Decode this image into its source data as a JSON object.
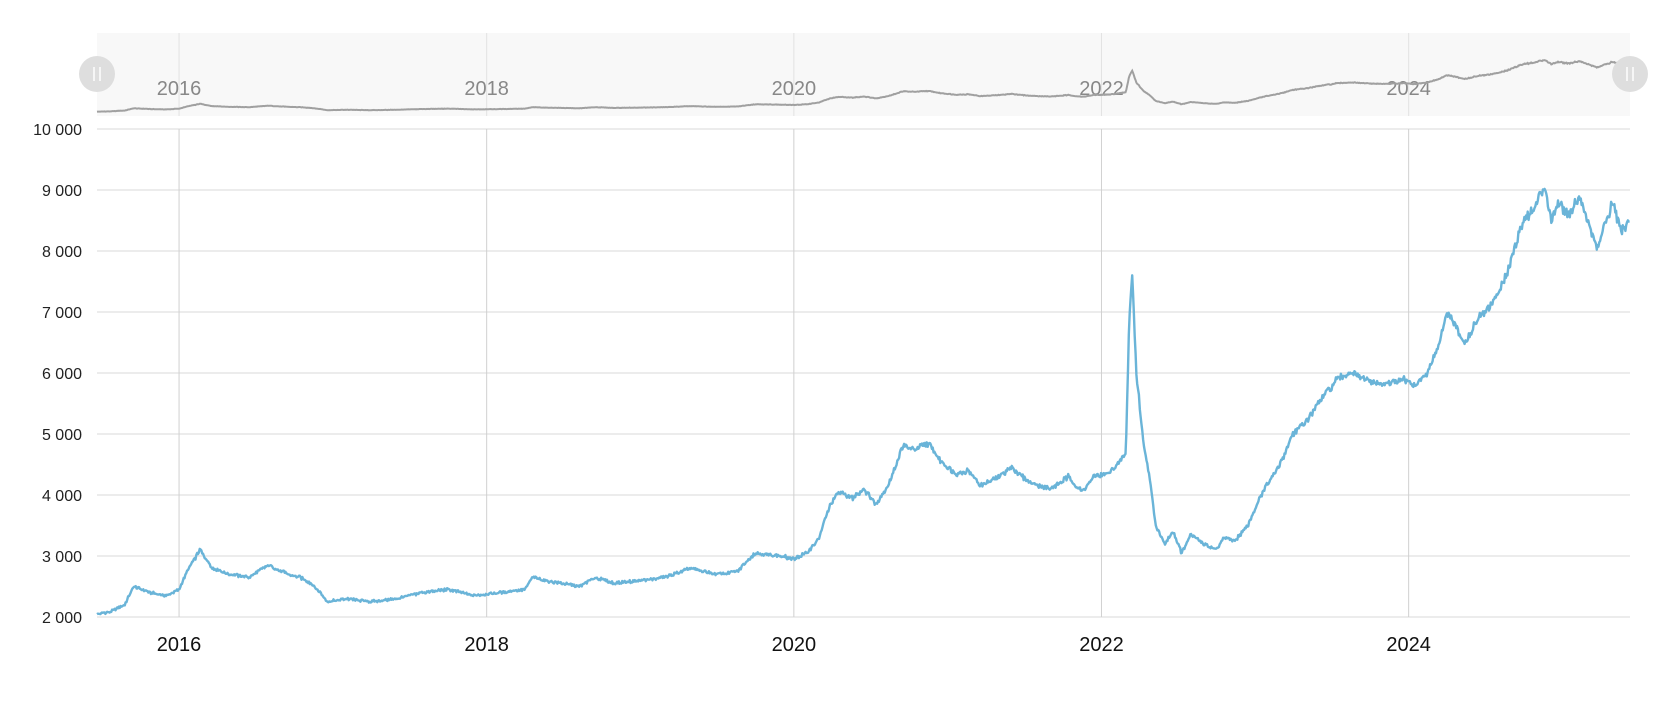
{
  "chart_data": {
    "type": "line",
    "title": "",
    "xlabel": "",
    "ylabel": "",
    "ylim": [
      2000,
      10000
    ],
    "xlim": [
      "2015-06-20",
      "2025-06-10"
    ],
    "y_ticks": [
      "2 000",
      "3 000",
      "4 000",
      "5 000",
      "6 000",
      "7 000",
      "8 000",
      "9 000",
      "10 000"
    ],
    "y_tick_values": [
      2000,
      3000,
      4000,
      5000,
      6000,
      7000,
      8000,
      9000,
      10000
    ],
    "x_ticks": [
      "2016",
      "2018",
      "2020",
      "2022",
      "2024"
    ],
    "x_tick_dates": [
      "2016-01-01",
      "2018-01-01",
      "2020-01-01",
      "2022-01-01",
      "2024-01-01"
    ],
    "grid": true,
    "legend": "none",
    "series": [
      {
        "color": "#6ab4d8",
        "x": [
          "2015-06-20",
          "2015-07-20",
          "2015-08-25",
          "2015-09-15",
          "2015-10-25",
          "2015-12-01",
          "2016-01-01",
          "2016-01-20",
          "2016-02-20",
          "2016-03-20",
          "2016-05-01",
          "2016-06-15",
          "2016-08-01",
          "2016-09-15",
          "2016-10-15",
          "2016-11-10",
          "2016-12-01",
          "2016-12-20",
          "2017-02-01",
          "2017-04-01",
          "2017-06-01",
          "2017-08-01",
          "2017-10-01",
          "2017-12-01",
          "2018-02-01",
          "2018-04-01",
          "2018-04-20",
          "2018-05-15",
          "2018-07-01",
          "2018-08-10",
          "2018-09-15",
          "2018-11-01",
          "2019-01-01",
          "2019-03-01",
          "2019-05-01",
          "2019-07-01",
          "2019-08-20",
          "2019-10-01",
          "2019-12-01",
          "2020-01-01",
          "2020-02-01",
          "2020-03-01",
          "2020-03-25",
          "2020-04-15",
          "2020-05-20",
          "2020-06-15",
          "2020-07-15",
          "2020-08-15",
          "2020-09-15",
          "2020-10-15",
          "2020-11-15",
          "2020-12-15",
          "2021-01-20",
          "2021-02-20",
          "2021-03-20",
          "2021-04-20",
          "2021-06-01",
          "2021-07-15",
          "2021-09-01",
          "2021-10-15",
          "2021-11-15",
          "2021-12-15",
          "2022-01-15",
          "2022-02-15",
          "2022-02-28",
          "2022-03-08",
          "2022-03-15",
          "2022-03-25",
          "2022-04-10",
          "2022-04-25",
          "2022-05-10",
          "2022-06-01",
          "2022-06-20",
          "2022-07-10",
          "2022-08-01",
          "2022-09-01",
          "2022-10-01",
          "2022-10-20",
          "2022-11-15",
          "2022-12-15",
          "2023-01-15",
          "2023-03-01",
          "2023-04-01",
          "2023-05-01",
          "2023-06-01",
          "2023-07-15",
          "2023-08-15",
          "2023-09-15",
          "2023-11-01",
          "2023-12-15",
          "2024-01-15",
          "2024-02-15",
          "2024-03-15",
          "2024-04-01",
          "2024-04-20",
          "2024-05-15",
          "2024-06-15",
          "2024-07-15",
          "2024-08-15",
          "2024-09-10",
          "2024-10-01",
          "2024-10-25",
          "2024-11-20",
          "2024-12-05",
          "2024-12-20",
          "2025-01-15",
          "2025-02-10",
          "2025-03-05",
          "2025-03-25",
          "2025-04-10",
          "2025-05-01",
          "2025-05-20",
          "2025-06-10"
        ],
        "y": [
          2050,
          2080,
          2200,
          2500,
          2400,
          2350,
          2450,
          2750,
          3100,
          2800,
          2700,
          2650,
          2850,
          2700,
          2650,
          2550,
          2400,
          2250,
          2300,
          2250,
          2300,
          2400,
          2450,
          2350,
          2400,
          2450,
          2650,
          2600,
          2550,
          2500,
          2650,
          2550,
          2600,
          2650,
          2800,
          2700,
          2750,
          3050,
          3000,
          2950,
          3050,
          3300,
          3800,
          4050,
          3950,
          4100,
          3850,
          4200,
          4800,
          4750,
          4850,
          4550,
          4350,
          4400,
          4150,
          4250,
          4450,
          4200,
          4100,
          4300,
          4050,
          4300,
          4350,
          4550,
          4700,
          6900,
          7600,
          6000,
          4900,
          4300,
          3500,
          3200,
          3400,
          3050,
          3350,
          3200,
          3100,
          3300,
          3250,
          3500,
          4000,
          4500,
          5000,
          5200,
          5500,
          5900,
          6000,
          5900,
          5800,
          5900,
          5800,
          6000,
          6500,
          7000,
          6800,
          6500,
          6900,
          7100,
          7500,
          8100,
          8500,
          8700,
          9100,
          8500,
          8800,
          8600,
          8900,
          8400,
          8050,
          8400,
          8800,
          8300,
          8500
        ]
      }
    ]
  },
  "navigator": {
    "x_ticks": [
      "2016",
      "2018",
      "2020",
      "2022",
      "2024"
    ],
    "line_color": "#a0a0a0",
    "handle_left_icon": "drag-handle-icon",
    "handle_right_icon": "drag-handle-icon"
  }
}
